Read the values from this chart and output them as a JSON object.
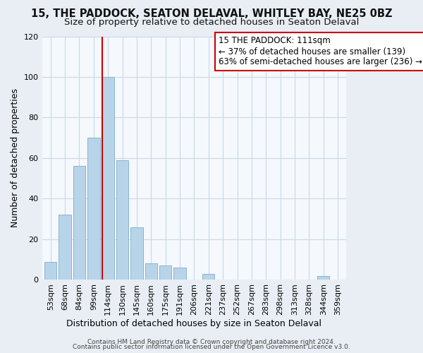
{
  "title_line1": "15, THE PADDOCK, SEATON DELAVAL, WHITLEY BAY, NE25 0BZ",
  "title_line2": "Size of property relative to detached houses in Seaton Delaval",
  "xlabel": "Distribution of detached houses by size in Seaton Delaval",
  "ylabel": "Number of detached properties",
  "footer_line1": "Contains HM Land Registry data © Crown copyright and database right 2024.",
  "footer_line2": "Contains public sector information licensed under the Open Government Licence v3.0.",
  "bar_labels": [
    "53sqm",
    "68sqm",
    "84sqm",
    "99sqm",
    "114sqm",
    "130sqm",
    "145sqm",
    "160sqm",
    "175sqm",
    "191sqm",
    "206sqm",
    "221sqm",
    "237sqm",
    "252sqm",
    "267sqm",
    "283sqm",
    "298sqm",
    "313sqm",
    "328sqm",
    "344sqm",
    "359sqm"
  ],
  "bar_values": [
    9,
    32,
    56,
    70,
    100,
    59,
    26,
    8,
    7,
    6,
    0,
    3,
    0,
    0,
    0,
    0,
    0,
    0,
    0,
    2,
    0
  ],
  "bar_color": "#b8d4e8",
  "bar_edge_color": "#8ab4cc",
  "vline_bar_index": 4,
  "vline_color": "#cc0000",
  "annotation_text": "15 THE PADDOCK: 111sqm\n← 37% of detached houses are smaller (139)\n63% of semi-detached houses are larger (236) →",
  "annotation_box_facecolor": "#ffffff",
  "annotation_box_edgecolor": "#cc0000",
  "ylim": [
    0,
    120
  ],
  "yticks": [
    0,
    20,
    40,
    60,
    80,
    100,
    120
  ],
  "background_color": "#e8eef4",
  "plot_background_color": "#f5f8fc",
  "grid_color": "#c8d8e8",
  "title_fontsize": 10.5,
  "subtitle_fontsize": 9.5,
  "axis_label_fontsize": 9,
  "tick_fontsize": 8,
  "footer_fontsize": 6.5
}
